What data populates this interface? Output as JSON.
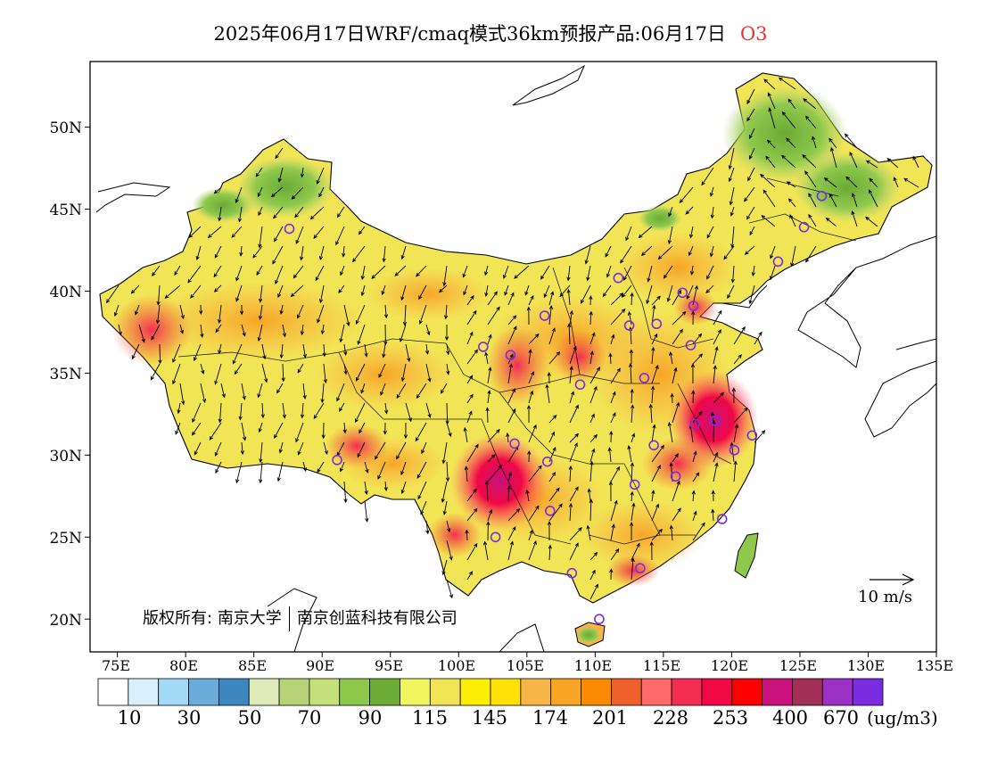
{
  "title": {
    "main": "2025年06月17日WRF/cmaq模式36km预报产品:06月17日",
    "species": "O3"
  },
  "axes": {
    "lat_labels": [
      "50N",
      "45N",
      "40N",
      "35N",
      "30N",
      "25N",
      "20N"
    ],
    "lon_labels": [
      "75E",
      "80E",
      "85E",
      "90E",
      "95E",
      "100E",
      "105E",
      "110E",
      "115E",
      "120E",
      "125E",
      "130E",
      "135E"
    ],
    "lon_range": [
      73,
      135
    ],
    "lat_range": [
      18,
      54
    ]
  },
  "legend": {
    "colors": [
      "#ffffff",
      "#d8f0fb",
      "#a3d9f5",
      "#6aaddd",
      "#3e86c0",
      "#dfeab9",
      "#b6d477",
      "#c4e07b",
      "#8fc94c",
      "#6caa36",
      "#f1f65f",
      "#f2e555",
      "#fbed05",
      "#ffe007",
      "#f7b447",
      "#f8a526",
      "#fb8a03",
      "#ee5f2b",
      "#fe6a6a",
      "#f42e53",
      "#f00845",
      "#fd0000",
      "#c8117a",
      "#a22f56",
      "#9b31c5",
      "#7b2ce2"
    ],
    "labels": [
      "10",
      "30",
      "50",
      "70",
      "90",
      "115",
      "145",
      "174",
      "201",
      "228",
      "253",
      "400",
      "670"
    ],
    "unit": "(ug/m3)"
  },
  "copyright": {
    "prefix": "版权所有:",
    "org1": "南京大学",
    "org2": "南京创蓝科技有限公司"
  },
  "wind_scale": {
    "label": "10 m/s"
  },
  "stations": [
    [
      87.6,
      43.8
    ],
    [
      101.8,
      36.6
    ],
    [
      103.8,
      36.1
    ],
    [
      106.3,
      38.5
    ],
    [
      111.7,
      40.8
    ],
    [
      112.5,
      37.9
    ],
    [
      114.5,
      38.0
    ],
    [
      116.4,
      39.9
    ],
    [
      117.2,
      39.1
    ],
    [
      117.0,
      36.7
    ],
    [
      113.6,
      34.7
    ],
    [
      108.9,
      34.3
    ],
    [
      104.1,
      30.7
    ],
    [
      106.5,
      29.6
    ],
    [
      106.7,
      26.6
    ],
    [
      102.7,
      25.0
    ],
    [
      108.3,
      22.8
    ],
    [
      113.3,
      23.1
    ],
    [
      110.3,
      20.0
    ],
    [
      112.9,
      28.2
    ],
    [
      114.3,
      30.6
    ],
    [
      115.9,
      28.7
    ],
    [
      117.3,
      31.9
    ],
    [
      118.8,
      32.1
    ],
    [
      120.2,
      30.3
    ],
    [
      121.5,
      31.2
    ],
    [
      119.3,
      26.1
    ],
    [
      123.4,
      41.8
    ],
    [
      125.3,
      43.9
    ],
    [
      126.6,
      45.8
    ],
    [
      91.1,
      29.7
    ]
  ]
}
